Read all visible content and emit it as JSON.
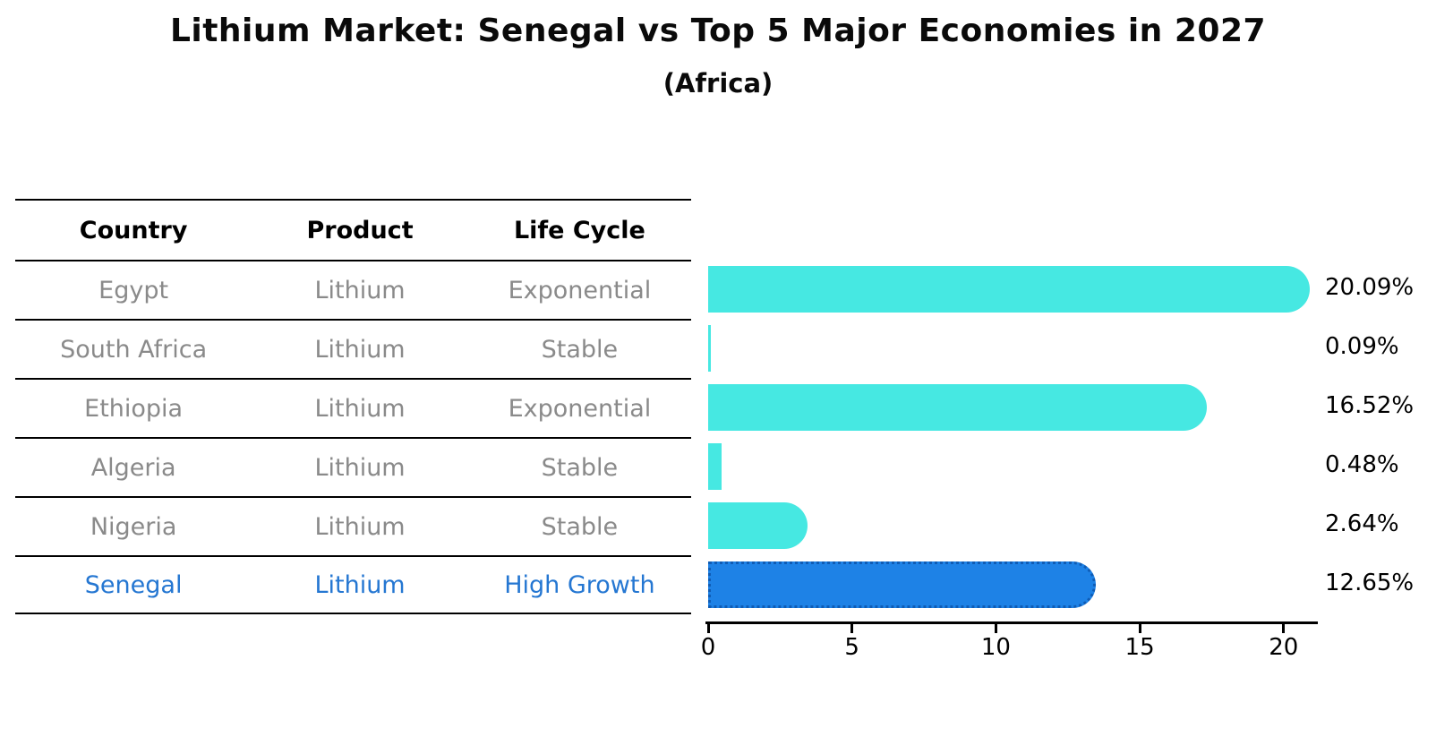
{
  "title": "Lithium Market: Senegal vs Top 5 Major Economies in 2027",
  "subtitle": "(Africa)",
  "table": {
    "headers": [
      "Country",
      "Product",
      "Life Cycle"
    ],
    "rows": [
      {
        "country": "Egypt",
        "product": "Lithium",
        "life_cycle": "Exponential"
      },
      {
        "country": "South Africa",
        "product": "Lithium",
        "life_cycle": "Stable"
      },
      {
        "country": "Ethiopia",
        "product": "Lithium",
        "life_cycle": "Exponential"
      },
      {
        "country": "Algeria",
        "product": "Lithium",
        "life_cycle": "Stable"
      },
      {
        "country": "Nigeria",
        "product": "Lithium",
        "life_cycle": "Stable"
      },
      {
        "country": "Senegal",
        "product": "Lithium",
        "life_cycle": "High Growth"
      }
    ],
    "highlight_row": 5
  },
  "chart_data": {
    "type": "bar",
    "orientation": "horizontal",
    "title": "Lithium Market: Senegal vs Top 5 Major Economies in 2027",
    "subtitle": "(Africa)",
    "categories": [
      "Egypt",
      "South Africa",
      "Ethiopia",
      "Algeria",
      "Nigeria",
      "Senegal"
    ],
    "values": [
      20.09,
      0.09,
      16.52,
      0.48,
      2.64,
      12.65
    ],
    "value_labels": [
      "20.09%",
      "0.09%",
      "16.52%",
      "0.48%",
      "2.64%",
      "12.65%"
    ],
    "x_ticks": [
      "0",
      "5",
      "10",
      "15",
      "20"
    ],
    "xlim": [
      0,
      21.1
    ],
    "grid": false,
    "legend": "none",
    "highlight_index": 5,
    "colors": {
      "bar": "#46e8e2",
      "highlight_bar": "#1e82e6",
      "highlight_border": "#0f5cb5",
      "highlight_text": "#2577d2",
      "row_text": "#8a8a8a",
      "header_text": "#000000",
      "axis": "#000000",
      "value_label": "#000000",
      "background": "#ffffff"
    }
  }
}
